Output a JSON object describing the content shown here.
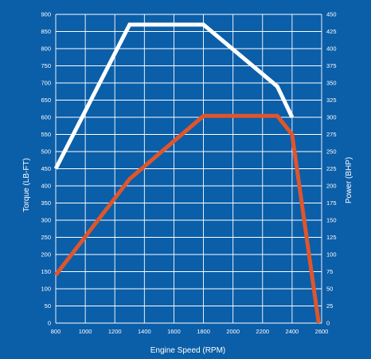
{
  "chart_data": {
    "type": "line",
    "title": "",
    "xlabel": "Engine Speed (RPM)",
    "ylabel_left": "Torque (LB-FT)",
    "ylabel_right": "Power (BHP)",
    "xlim": [
      800,
      2600
    ],
    "ylim_left": [
      0,
      900
    ],
    "ylim_right": [
      0,
      450
    ],
    "x_ticks": [
      800,
      1000,
      1200,
      1400,
      1600,
      1800,
      2000,
      2200,
      2400,
      2600
    ],
    "y_ticks_left": [
      0,
      50,
      100,
      150,
      200,
      250,
      300,
      350,
      400,
      450,
      500,
      550,
      600,
      650,
      700,
      750,
      800,
      850,
      900
    ],
    "y_ticks_right": [
      0,
      25,
      50,
      75,
      100,
      125,
      150,
      175,
      200,
      225,
      250,
      275,
      300,
      325,
      350,
      375,
      400,
      425,
      450
    ],
    "grid": true,
    "background_color": "#0b5ea8",
    "series": [
      {
        "axis": "left",
        "color": "#ffffff",
        "points": [
          [
            800,
            450
          ],
          [
            1300,
            870
          ],
          [
            1800,
            870
          ],
          [
            2300,
            690
          ],
          [
            2400,
            600
          ]
        ]
      },
      {
        "axis": "right",
        "color": "#e0552b",
        "points": [
          [
            800,
            70
          ],
          [
            1300,
            210
          ],
          [
            1800,
            302
          ],
          [
            2300,
            302
          ],
          [
            2400,
            275
          ],
          [
            2580,
            0
          ]
        ]
      }
    ]
  }
}
